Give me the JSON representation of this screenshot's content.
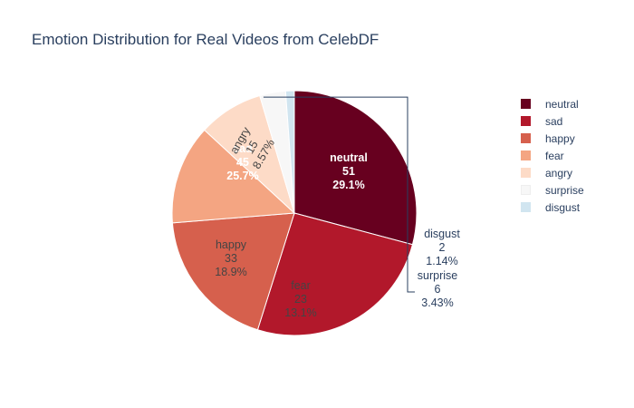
{
  "chart_data": {
    "type": "pie",
    "title": "Emotion Distribution for Real Videos from CelebDF",
    "categories": [
      "neutral",
      "sad",
      "happy",
      "fear",
      "angry",
      "surprise",
      "disgust"
    ],
    "values": [
      51,
      45,
      33,
      23,
      15,
      6,
      2
    ],
    "percent_labels": [
      "29.1%",
      "25.7%",
      "18.9%",
      "13.1%",
      "8.57%",
      "3.43%",
      "1.14%"
    ],
    "colors": [
      "#67001f",
      "#b2182b",
      "#d6604d",
      "#f4a582",
      "#fddbc7",
      "#f7f7f7",
      "#d1e5f0"
    ],
    "legend_position": "right",
    "direction": "clockwise",
    "start_angle": "top"
  }
}
